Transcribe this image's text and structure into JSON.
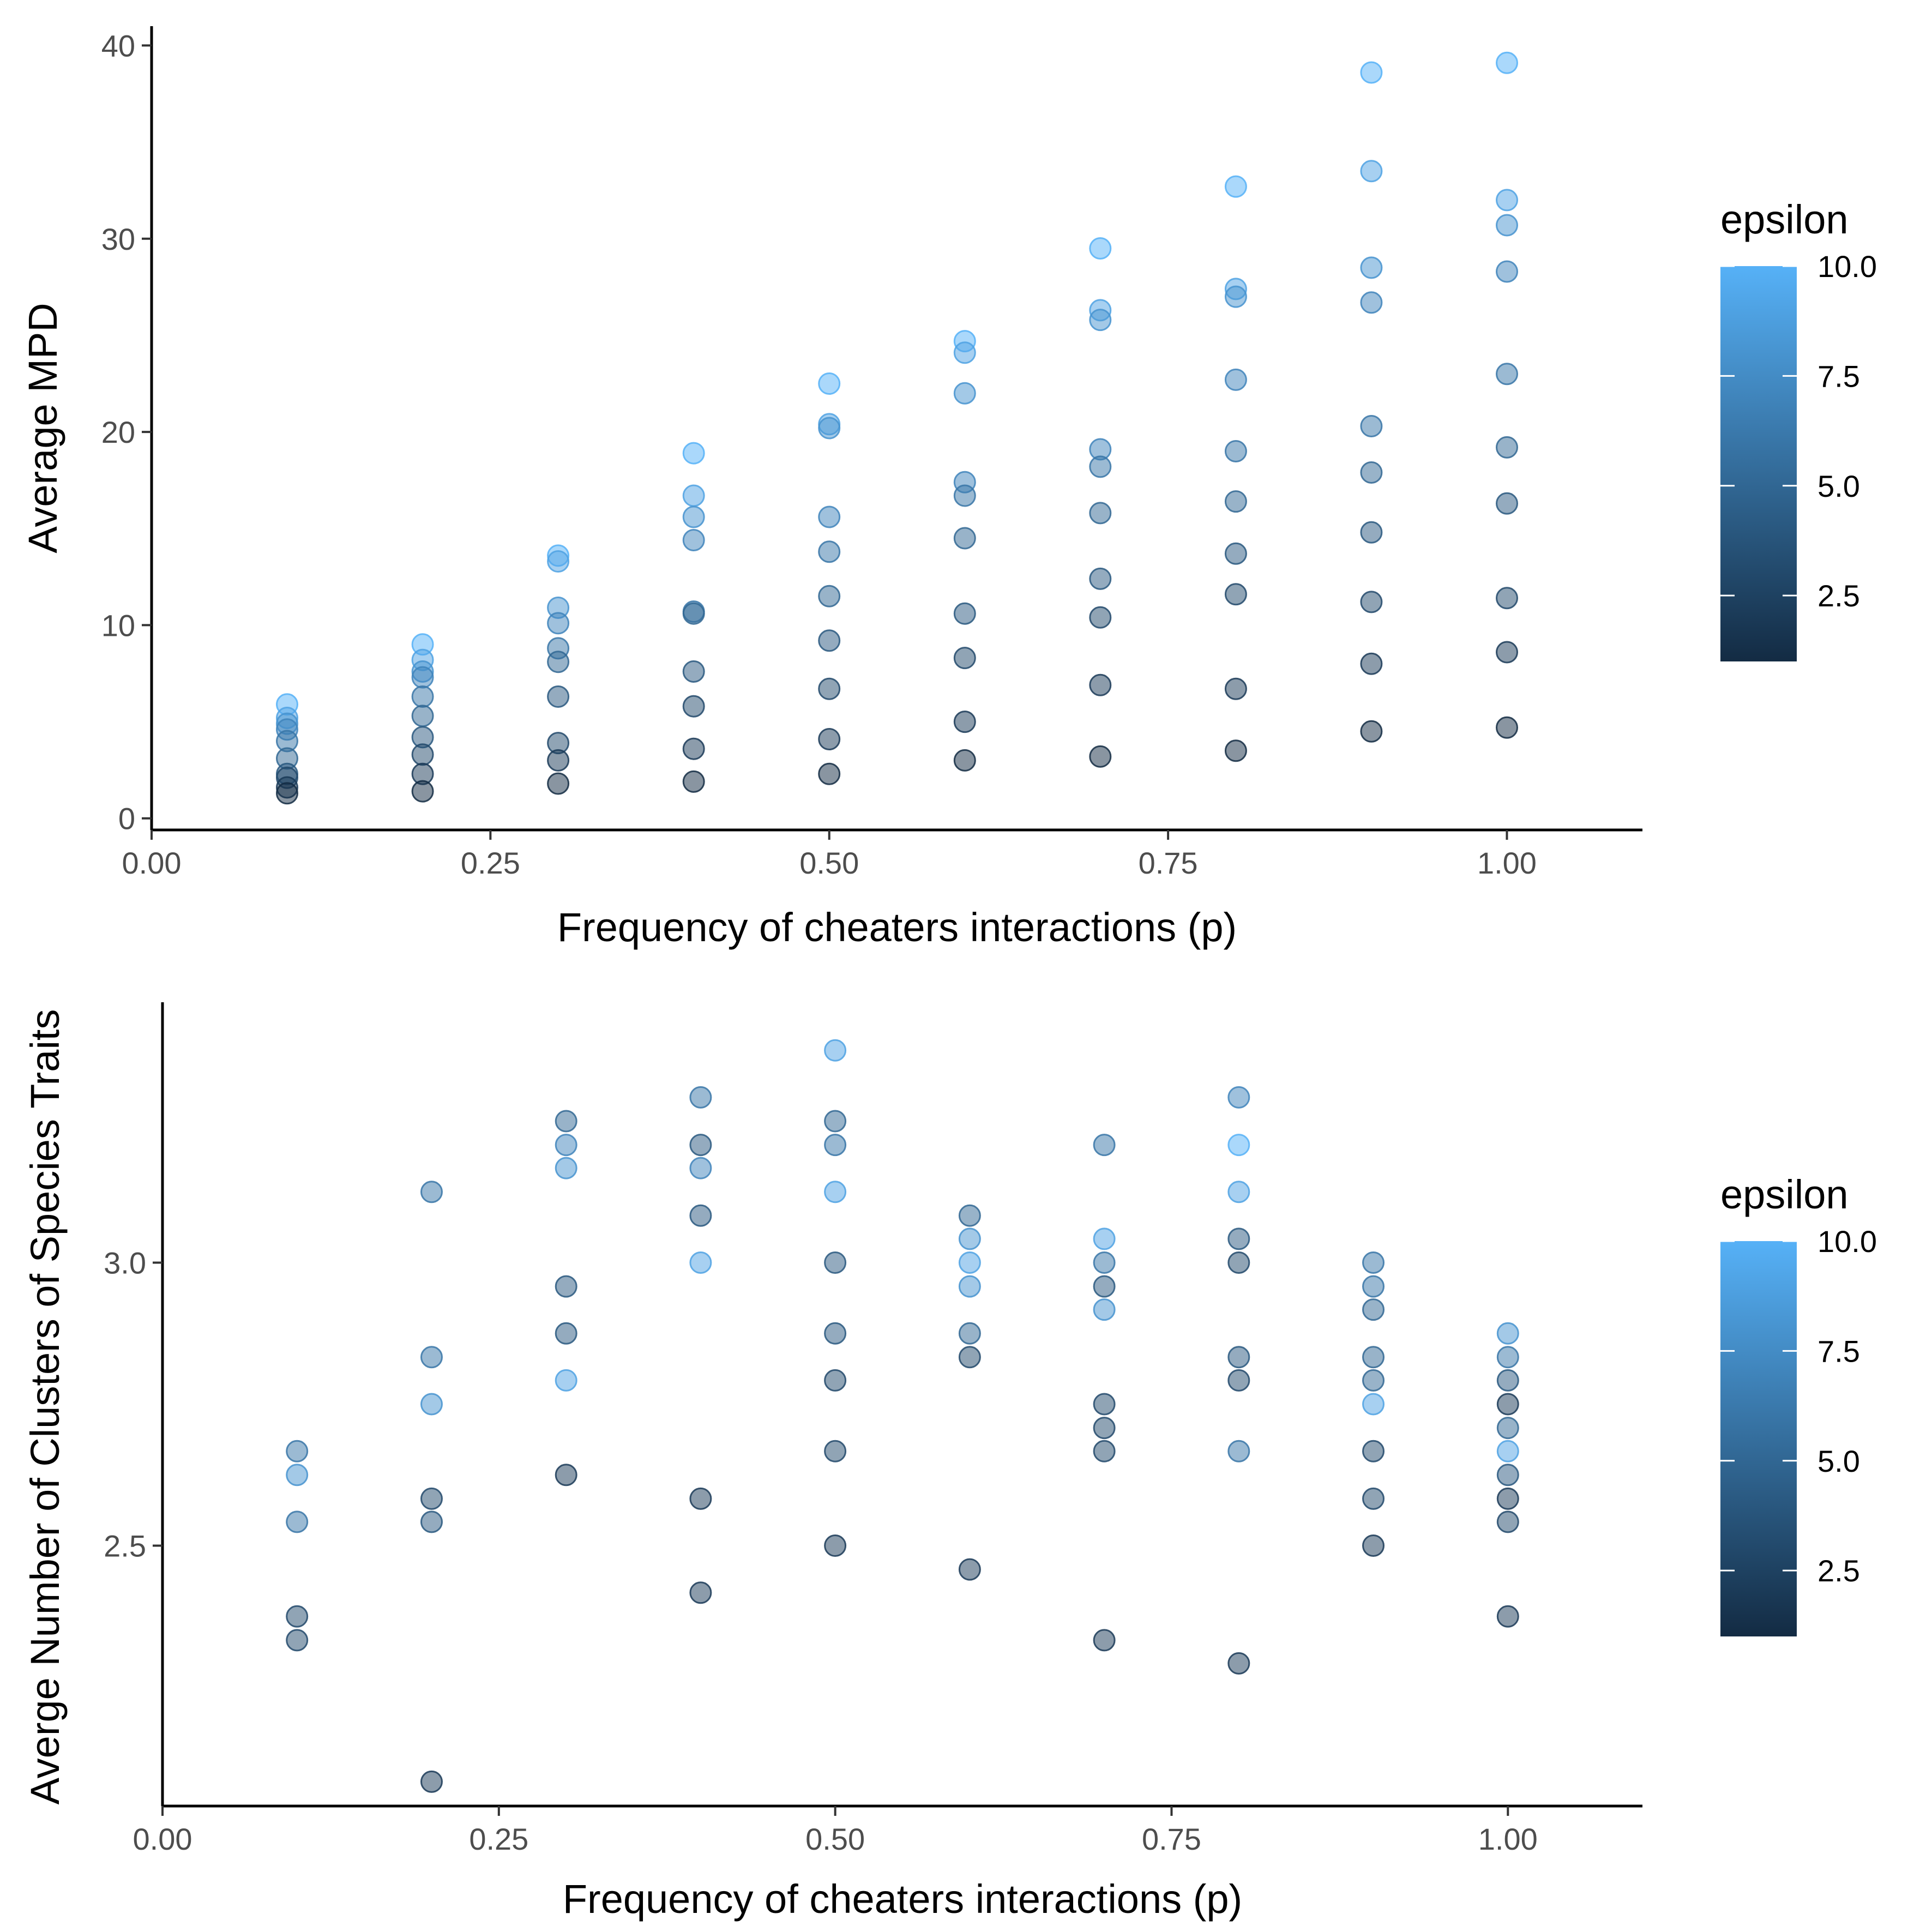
{
  "colors": {
    "low": "#132B43",
    "high": "#56B1F7"
  },
  "chart_data": [
    {
      "type": "scatter",
      "xlabel": "Frequency of cheaters interactions (p)",
      "ylabel": "Average MPD",
      "xlim": [
        0,
        1.1
      ],
      "ylim": [
        -0.6,
        41
      ],
      "xticks": [
        0,
        0.25,
        0.5,
        0.75,
        1.0
      ],
      "xtick_labels": [
        "0.00",
        "0.25",
        "0.50",
        "0.75",
        "1.00"
      ],
      "yticks": [
        0,
        10,
        20,
        30,
        40
      ],
      "ytick_labels": [
        "0",
        "10",
        "20",
        "30",
        "40"
      ],
      "legend": {
        "title": "epsilon",
        "min": 1,
        "max": 10,
        "ticks": [
          2.5,
          5.0,
          7.5,
          10.0
        ],
        "tick_labels": [
          "2.5",
          "5.0",
          "7.5",
          "10.0"
        ],
        "position": "right"
      },
      "grid": false,
      "points": [
        {
          "x": 0.1,
          "y": 5.9,
          "c": 10
        },
        {
          "x": 0.1,
          "y": 5.2,
          "c": 9
        },
        {
          "x": 0.1,
          "y": 4.9,
          "c": 8
        },
        {
          "x": 0.1,
          "y": 4.6,
          "c": 7
        },
        {
          "x": 0.1,
          "y": 4.0,
          "c": 6
        },
        {
          "x": 0.1,
          "y": 3.1,
          "c": 5
        },
        {
          "x": 0.1,
          "y": 2.3,
          "c": 4
        },
        {
          "x": 0.1,
          "y": 2.1,
          "c": 3
        },
        {
          "x": 0.1,
          "y": 1.6,
          "c": 2
        },
        {
          "x": 0.1,
          "y": 1.3,
          "c": 1
        },
        {
          "x": 0.2,
          "y": 9.0,
          "c": 10
        },
        {
          "x": 0.2,
          "y": 8.2,
          "c": 9
        },
        {
          "x": 0.2,
          "y": 7.6,
          "c": 8
        },
        {
          "x": 0.2,
          "y": 7.3,
          "c": 7
        },
        {
          "x": 0.2,
          "y": 6.3,
          "c": 6
        },
        {
          "x": 0.2,
          "y": 5.3,
          "c": 5
        },
        {
          "x": 0.2,
          "y": 4.2,
          "c": 4
        },
        {
          "x": 0.2,
          "y": 3.3,
          "c": 3
        },
        {
          "x": 0.2,
          "y": 2.3,
          "c": 2
        },
        {
          "x": 0.2,
          "y": 1.4,
          "c": 1
        },
        {
          "x": 0.3,
          "y": 13.6,
          "c": 10
        },
        {
          "x": 0.3,
          "y": 13.3,
          "c": 9
        },
        {
          "x": 0.3,
          "y": 10.9,
          "c": 8
        },
        {
          "x": 0.3,
          "y": 10.1,
          "c": 7
        },
        {
          "x": 0.3,
          "y": 8.8,
          "c": 6
        },
        {
          "x": 0.3,
          "y": 8.1,
          "c": 5
        },
        {
          "x": 0.3,
          "y": 6.3,
          "c": 4
        },
        {
          "x": 0.3,
          "y": 3.9,
          "c": 3
        },
        {
          "x": 0.3,
          "y": 3.0,
          "c": 2
        },
        {
          "x": 0.3,
          "y": 1.8,
          "c": 1
        },
        {
          "x": 0.4,
          "y": 18.9,
          "c": 10
        },
        {
          "x": 0.4,
          "y": 16.7,
          "c": 9
        },
        {
          "x": 0.4,
          "y": 15.6,
          "c": 8
        },
        {
          "x": 0.4,
          "y": 14.4,
          "c": 7
        },
        {
          "x": 0.4,
          "y": 10.7,
          "c": 6
        },
        {
          "x": 0.4,
          "y": 10.6,
          "c": 5
        },
        {
          "x": 0.4,
          "y": 7.6,
          "c": 4
        },
        {
          "x": 0.4,
          "y": 5.8,
          "c": 3
        },
        {
          "x": 0.4,
          "y": 3.6,
          "c": 2
        },
        {
          "x": 0.4,
          "y": 1.9,
          "c": 1
        },
        {
          "x": 0.5,
          "y": 22.5,
          "c": 10
        },
        {
          "x": 0.5,
          "y": 20.4,
          "c": 9
        },
        {
          "x": 0.5,
          "y": 20.2,
          "c": 8
        },
        {
          "x": 0.5,
          "y": 15.6,
          "c": 7
        },
        {
          "x": 0.5,
          "y": 13.8,
          "c": 6
        },
        {
          "x": 0.5,
          "y": 11.5,
          "c": 5
        },
        {
          "x": 0.5,
          "y": 9.2,
          "c": 4
        },
        {
          "x": 0.5,
          "y": 6.7,
          "c": 3
        },
        {
          "x": 0.5,
          "y": 4.1,
          "c": 2
        },
        {
          "x": 0.5,
          "y": 2.3,
          "c": 1
        },
        {
          "x": 0.6,
          "y": 24.7,
          "c": 10
        },
        {
          "x": 0.6,
          "y": 24.1,
          "c": 9
        },
        {
          "x": 0.6,
          "y": 22.0,
          "c": 8
        },
        {
          "x": 0.6,
          "y": 17.4,
          "c": 7
        },
        {
          "x": 0.6,
          "y": 16.7,
          "c": 6
        },
        {
          "x": 0.6,
          "y": 14.5,
          "c": 5
        },
        {
          "x": 0.6,
          "y": 10.6,
          "c": 4
        },
        {
          "x": 0.6,
          "y": 8.3,
          "c": 3
        },
        {
          "x": 0.6,
          "y": 5.0,
          "c": 2
        },
        {
          "x": 0.6,
          "y": 3.0,
          "c": 1
        },
        {
          "x": 0.7,
          "y": 29.5,
          "c": 10
        },
        {
          "x": 0.7,
          "y": 26.3,
          "c": 9
        },
        {
          "x": 0.7,
          "y": 25.8,
          "c": 8
        },
        {
          "x": 0.7,
          "y": 19.1,
          "c": 7
        },
        {
          "x": 0.7,
          "y": 18.2,
          "c": 6
        },
        {
          "x": 0.7,
          "y": 15.8,
          "c": 5
        },
        {
          "x": 0.7,
          "y": 12.4,
          "c": 4
        },
        {
          "x": 0.7,
          "y": 10.4,
          "c": 3
        },
        {
          "x": 0.7,
          "y": 6.9,
          "c": 2
        },
        {
          "x": 0.7,
          "y": 3.2,
          "c": 1
        },
        {
          "x": 0.8,
          "y": 32.7,
          "c": 10
        },
        {
          "x": 0.8,
          "y": 27.4,
          "c": 9
        },
        {
          "x": 0.8,
          "y": 27.0,
          "c": 8
        },
        {
          "x": 0.8,
          "y": 22.7,
          "c": 7
        },
        {
          "x": 0.8,
          "y": 19.0,
          "c": 6
        },
        {
          "x": 0.8,
          "y": 16.4,
          "c": 5
        },
        {
          "x": 0.8,
          "y": 13.7,
          "c": 4
        },
        {
          "x": 0.8,
          "y": 11.6,
          "c": 3
        },
        {
          "x": 0.8,
          "y": 6.7,
          "c": 2
        },
        {
          "x": 0.8,
          "y": 3.5,
          "c": 1
        },
        {
          "x": 0.9,
          "y": 38.6,
          "c": 10
        },
        {
          "x": 0.9,
          "y": 33.5,
          "c": 9
        },
        {
          "x": 0.9,
          "y": 28.5,
          "c": 8
        },
        {
          "x": 0.9,
          "y": 26.7,
          "c": 7
        },
        {
          "x": 0.9,
          "y": 20.3,
          "c": 6
        },
        {
          "x": 0.9,
          "y": 17.9,
          "c": 5
        },
        {
          "x": 0.9,
          "y": 14.8,
          "c": 4
        },
        {
          "x": 0.9,
          "y": 11.2,
          "c": 3
        },
        {
          "x": 0.9,
          "y": 8.0,
          "c": 2
        },
        {
          "x": 0.9,
          "y": 4.5,
          "c": 1
        },
        {
          "x": 1.0,
          "y": 39.1,
          "c": 10
        },
        {
          "x": 1.0,
          "y": 32.0,
          "c": 9
        },
        {
          "x": 1.0,
          "y": 30.7,
          "c": 8
        },
        {
          "x": 1.0,
          "y": 28.3,
          "c": 7
        },
        {
          "x": 1.0,
          "y": 23.0,
          "c": 6
        },
        {
          "x": 1.0,
          "y": 19.2,
          "c": 5
        },
        {
          "x": 1.0,
          "y": 16.3,
          "c": 4
        },
        {
          "x": 1.0,
          "y": 11.4,
          "c": 3
        },
        {
          "x": 1.0,
          "y": 8.6,
          "c": 2
        },
        {
          "x": 1.0,
          "y": 4.7,
          "c": 1
        }
      ]
    },
    {
      "type": "scatter",
      "xlabel": "Frequency of cheaters interactions (p)",
      "ylabel": "Averge Number of Clusters of Species Traits",
      "xlim": [
        0,
        1.1
      ],
      "ylim": [
        2.04,
        3.46
      ],
      "xticks": [
        0,
        0.25,
        0.5,
        0.75,
        1.0
      ],
      "xtick_labels": [
        "0.00",
        "0.25",
        "0.50",
        "0.75",
        "1.00"
      ],
      "yticks": [
        2.5,
        3.0
      ],
      "ytick_labels": [
        "2.5",
        "3.0"
      ],
      "legend": {
        "title": "epsilon",
        "min": 1,
        "max": 10,
        "ticks": [
          2.5,
          5.0,
          7.5,
          10.0
        ],
        "tick_labels": [
          "2.5",
          "5.0",
          "7.5",
          "10.0"
        ],
        "position": "right"
      },
      "grid": false,
      "points": [
        {
          "x": 0.1,
          "y": 2.667,
          "c": 6
        },
        {
          "x": 0.1,
          "y": 2.625,
          "c": 8
        },
        {
          "x": 0.1,
          "y": 2.542,
          "c": 6
        },
        {
          "x": 0.1,
          "y": 2.375,
          "c": 3
        },
        {
          "x": 0.1,
          "y": 2.333,
          "c": 3
        },
        {
          "x": 0.2,
          "y": 3.125,
          "c": 6
        },
        {
          "x": 0.2,
          "y": 2.833,
          "c": 6
        },
        {
          "x": 0.2,
          "y": 2.75,
          "c": 8
        },
        {
          "x": 0.2,
          "y": 2.583,
          "c": 3
        },
        {
          "x": 0.2,
          "y": 2.542,
          "c": 4
        },
        {
          "x": 0.2,
          "y": 2.083,
          "c": 2
        },
        {
          "x": 0.3,
          "y": 3.25,
          "c": 5
        },
        {
          "x": 0.3,
          "y": 3.208,
          "c": 7
        },
        {
          "x": 0.3,
          "y": 3.167,
          "c": 8
        },
        {
          "x": 0.3,
          "y": 2.958,
          "c": 4
        },
        {
          "x": 0.3,
          "y": 2.875,
          "c": 4
        },
        {
          "x": 0.3,
          "y": 2.792,
          "c": 9
        },
        {
          "x": 0.3,
          "y": 2.625,
          "c": 2
        },
        {
          "x": 0.4,
          "y": 3.292,
          "c": 6
        },
        {
          "x": 0.4,
          "y": 3.208,
          "c": 4
        },
        {
          "x": 0.4,
          "y": 3.167,
          "c": 7
        },
        {
          "x": 0.4,
          "y": 3.083,
          "c": 4
        },
        {
          "x": 0.4,
          "y": 3.0,
          "c": 9
        },
        {
          "x": 0.4,
          "y": 2.583,
          "c": 2
        },
        {
          "x": 0.4,
          "y": 2.417,
          "c": 2
        },
        {
          "x": 0.5,
          "y": 3.375,
          "c": 9
        },
        {
          "x": 0.5,
          "y": 3.25,
          "c": 5
        },
        {
          "x": 0.5,
          "y": 3.208,
          "c": 6
        },
        {
          "x": 0.5,
          "y": 3.125,
          "c": 9
        },
        {
          "x": 0.5,
          "y": 3.0,
          "c": 4
        },
        {
          "x": 0.5,
          "y": 2.875,
          "c": 4
        },
        {
          "x": 0.5,
          "y": 2.792,
          "c": 3
        },
        {
          "x": 0.5,
          "y": 2.667,
          "c": 3
        },
        {
          "x": 0.5,
          "y": 2.5,
          "c": 2
        },
        {
          "x": 0.6,
          "y": 3.083,
          "c": 5
        },
        {
          "x": 0.6,
          "y": 3.042,
          "c": 8
        },
        {
          "x": 0.6,
          "y": 3.0,
          "c": 9
        },
        {
          "x": 0.6,
          "y": 2.958,
          "c": 8
        },
        {
          "x": 0.6,
          "y": 2.875,
          "c": 5
        },
        {
          "x": 0.6,
          "y": 2.833,
          "c": 3
        },
        {
          "x": 0.6,
          "y": 2.458,
          "c": 2
        },
        {
          "x": 0.7,
          "y": 3.208,
          "c": 6
        },
        {
          "x": 0.7,
          "y": 3.042,
          "c": 9
        },
        {
          "x": 0.7,
          "y": 3.0,
          "c": 6
        },
        {
          "x": 0.7,
          "y": 2.958,
          "c": 4
        },
        {
          "x": 0.7,
          "y": 2.917,
          "c": 8
        },
        {
          "x": 0.7,
          "y": 2.75,
          "c": 3
        },
        {
          "x": 0.7,
          "y": 2.708,
          "c": 3
        },
        {
          "x": 0.7,
          "y": 2.667,
          "c": 3
        },
        {
          "x": 0.7,
          "y": 2.333,
          "c": 2
        },
        {
          "x": 0.8,
          "y": 3.292,
          "c": 7
        },
        {
          "x": 0.8,
          "y": 3.208,
          "c": 10
        },
        {
          "x": 0.8,
          "y": 3.125,
          "c": 9
        },
        {
          "x": 0.8,
          "y": 3.042,
          "c": 4
        },
        {
          "x": 0.8,
          "y": 3.0,
          "c": 3
        },
        {
          "x": 0.8,
          "y": 2.833,
          "c": 4
        },
        {
          "x": 0.8,
          "y": 2.792,
          "c": 3
        },
        {
          "x": 0.8,
          "y": 2.667,
          "c": 6
        },
        {
          "x": 0.8,
          "y": 2.292,
          "c": 2
        },
        {
          "x": 0.9,
          "y": 3.0,
          "c": 6
        },
        {
          "x": 0.9,
          "y": 2.958,
          "c": 6
        },
        {
          "x": 0.9,
          "y": 2.917,
          "c": 5
        },
        {
          "x": 0.9,
          "y": 2.833,
          "c": 5
        },
        {
          "x": 0.9,
          "y": 2.792,
          "c": 5
        },
        {
          "x": 0.9,
          "y": 2.75,
          "c": 9
        },
        {
          "x": 0.9,
          "y": 2.667,
          "c": 3
        },
        {
          "x": 0.9,
          "y": 2.583,
          "c": 3
        },
        {
          "x": 0.9,
          "y": 2.5,
          "c": 2
        },
        {
          "x": 1.0,
          "y": 2.875,
          "c": 8
        },
        {
          "x": 1.0,
          "y": 2.833,
          "c": 6
        },
        {
          "x": 1.0,
          "y": 2.792,
          "c": 4
        },
        {
          "x": 1.0,
          "y": 2.75,
          "c": 2
        },
        {
          "x": 1.0,
          "y": 2.708,
          "c": 5
        },
        {
          "x": 1.0,
          "y": 2.667,
          "c": 9
        },
        {
          "x": 1.0,
          "y": 2.625,
          "c": 4
        },
        {
          "x": 1.0,
          "y": 2.583,
          "c": 2
        },
        {
          "x": 1.0,
          "y": 2.542,
          "c": 3
        },
        {
          "x": 1.0,
          "y": 2.375,
          "c": 2
        }
      ]
    }
  ]
}
